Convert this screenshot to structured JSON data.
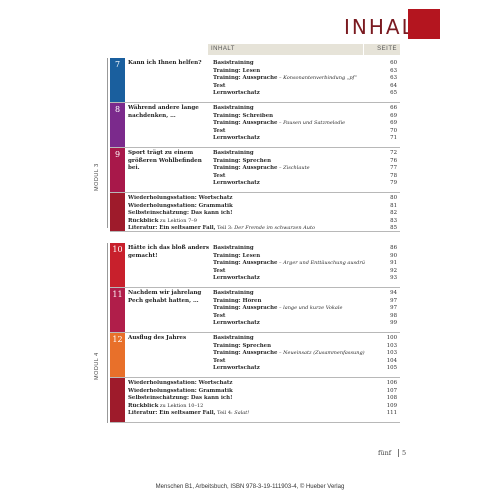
{
  "header": {
    "title": "INHALT",
    "accent": "#b4151f"
  },
  "columns": {
    "inhalt": "INHALT",
    "seite": "SEITE"
  },
  "modul3": {
    "label": "MODUL 3",
    "lessons": [
      {
        "num": "7",
        "color": "#1a5f9e",
        "title": "Kann ich Ihnen helfen?",
        "items": [
          {
            "b": "Basistraining",
            "n": ""
          },
          {
            "b": "Training: Lesen",
            "n": ""
          },
          {
            "b": "Training: Aussprache",
            "n": " – Konsonantenverbindung „pf“"
          },
          {
            "b": "Test",
            "n": ""
          },
          {
            "b": "Lernwortschatz",
            "n": ""
          }
        ],
        "pages": [
          "60",
          "63",
          "63",
          "64",
          "65"
        ]
      },
      {
        "num": "8",
        "color": "#7b2a8c",
        "title": "Während andere lange nachdenken, …",
        "items": [
          {
            "b": "Basistraining",
            "n": ""
          },
          {
            "b": "Training: Schreiben",
            "n": ""
          },
          {
            "b": "Training: Aussprache",
            "n": " – Pausen und Satzmelodie"
          },
          {
            "b": "Test",
            "n": ""
          },
          {
            "b": "Lernwortschatz",
            "n": ""
          }
        ],
        "pages": [
          "66",
          "69",
          "69",
          "70",
          "71"
        ]
      },
      {
        "num": "9",
        "color": "#a8184a",
        "title": "Sport trägt zu einem größeren Wohlbefinden bei.",
        "items": [
          {
            "b": "Basistraining",
            "n": ""
          },
          {
            "b": "Training: Sprechen",
            "n": ""
          },
          {
            "b": "Training: Aussprache",
            "n": " – Zischlaute"
          },
          {
            "b": "Test",
            "n": ""
          },
          {
            "b": "Lernwortschatz",
            "n": ""
          }
        ],
        "pages": [
          "72",
          "76",
          "77",
          "78",
          "79"
        ]
      }
    ],
    "review": {
      "items": [
        {
          "b": "Wiederholungsstation: Wortschatz",
          "p": "",
          "n": ""
        },
        {
          "b": "Wiederholungsstation: Grammatik",
          "p": "",
          "n": ""
        },
        {
          "b": "Selbsteinschätzung: Das kann ich!",
          "p": "",
          "n": ""
        },
        {
          "b": "Rückblick",
          "p": " zu Lektion 7–9",
          "n": ""
        },
        {
          "b": "Literatur: Ein seltsamer Fall,",
          "p": " Teil 3: ",
          "n": "Der Fremde im schwarzen Auto"
        }
      ],
      "pages": [
        "80",
        "81",
        "82",
        "83",
        "85"
      ]
    }
  },
  "modul4": {
    "label": "MODUL 4",
    "lessons": [
      {
        "num": "10",
        "color": "#c8202c",
        "title": "Hätte ich das bloß anders gemacht!",
        "items": [
          {
            "b": "Basistraining",
            "n": ""
          },
          {
            "b": "Training: Lesen",
            "n": ""
          },
          {
            "b": "Training: Aussprache",
            "n": " – Ärger und Enttäuschung ausdrücken"
          },
          {
            "b": "Test",
            "n": ""
          },
          {
            "b": "Lernwortschatz",
            "n": ""
          }
        ],
        "pages": [
          "86",
          "90",
          "91",
          "92",
          "93"
        ]
      },
      {
        "num": "11",
        "color": "#b01e4a",
        "title": "Nachdem wir jahrelang Pech gehabt hatten, …",
        "items": [
          {
            "b": "Basistraining",
            "n": ""
          },
          {
            "b": "Training: Hören",
            "n": ""
          },
          {
            "b": "Training: Aussprache",
            "n": " – lange und kurze Vokale"
          },
          {
            "b": "Test",
            "n": ""
          },
          {
            "b": "Lernwortschatz",
            "n": ""
          }
        ],
        "pages": [
          "94",
          "97",
          "97",
          "98",
          "99"
        ]
      },
      {
        "num": "12",
        "color": "#e8702a",
        "title": "Ausflug des Jahres",
        "items": [
          {
            "b": "Basistraining",
            "n": ""
          },
          {
            "b": "Training: Sprechen",
            "n": ""
          },
          {
            "b": "Training: Aussprache",
            "n": " – Neueinsatz (Zusammenfassung)"
          },
          {
            "b": "Test",
            "n": ""
          },
          {
            "b": "Lernwortschatz",
            "n": ""
          }
        ],
        "pages": [
          "100",
          "103",
          "103",
          "104",
          "105"
        ]
      }
    ],
    "review": {
      "items": [
        {
          "b": "Wiederholungsstation: Wortschatz",
          "p": "",
          "n": ""
        },
        {
          "b": "Wiederholungsstation: Grammatik",
          "p": "",
          "n": ""
        },
        {
          "b": "Selbsteinschätzung: Das kann ich!",
          "p": "",
          "n": ""
        },
        {
          "b": "Rückblick",
          "p": " zu Lektion 10–12",
          "n": ""
        },
        {
          "b": "Literatur: Ein seltsamer Fall,",
          "p": " Teil 4: ",
          "n": "Salat!"
        }
      ],
      "pages": [
        "106",
        "107",
        "108",
        "109",
        "111"
      ]
    }
  },
  "page_footer": {
    "word": "fünf",
    "number": "5"
  },
  "footer": "Menschen B1, Arbeitsbuch, ISBN 978-3-19-111903-4, © Hueber Verlag"
}
